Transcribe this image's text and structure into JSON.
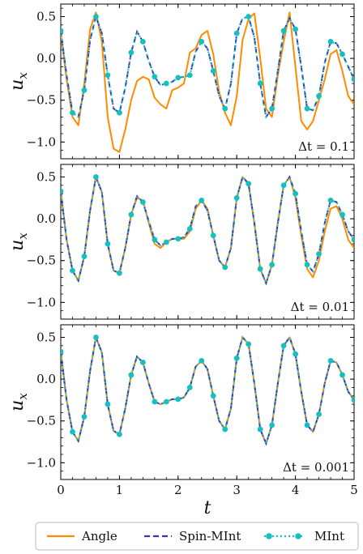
{
  "colors": {
    "angle": "#ff8c00",
    "spin_mint": "#4b2db0",
    "mint": "#17c0c0"
  },
  "legend": {
    "position": "bottom",
    "entries": [
      "Angle",
      "Spin-MInt",
      "MInt"
    ]
  },
  "chart_data": [
    {
      "type": "line",
      "annotation": "Δt = 0.1",
      "xlabel": "",
      "ylabel": "u_x",
      "xlim": [
        0,
        5
      ],
      "ylim": [
        -1.2,
        0.65
      ],
      "yticks": [
        0.5,
        0.0,
        -0.5,
        -1.0
      ],
      "ytick_labels": [
        "0.5",
        "0.0",
        "−0.5",
        "−1.0"
      ],
      "xticks": [
        0,
        1,
        2,
        3,
        4,
        5
      ],
      "xtick_labels": [],
      "series": [
        {
          "name": "Angle",
          "style": "solid",
          "x": [
            0,
            0.1,
            0.2,
            0.3,
            0.4,
            0.5,
            0.6,
            0.7,
            0.8,
            0.9,
            1.0,
            1.1,
            1.2,
            1.3,
            1.4,
            1.5,
            1.6,
            1.7,
            1.8,
            1.9,
            2.0,
            2.1,
            2.2,
            2.3,
            2.4,
            2.5,
            2.6,
            2.7,
            2.8,
            2.9,
            3.0,
            3.1,
            3.2,
            3.3,
            3.4,
            3.5,
            3.6,
            3.7,
            3.8,
            3.9,
            4.0,
            4.1,
            4.2,
            4.3,
            4.4,
            4.5,
            4.6,
            4.7,
            4.8,
            4.9,
            5.0
          ],
          "y": [
            0.3,
            -0.25,
            -0.7,
            -0.8,
            -0.3,
            0.35,
            0.55,
            0.2,
            -0.7,
            -1.08,
            -1.12,
            -0.85,
            -0.5,
            -0.27,
            -0.22,
            -0.25,
            -0.47,
            -0.55,
            -0.6,
            -0.38,
            -0.35,
            -0.3,
            0.07,
            0.12,
            0.28,
            0.33,
            0.05,
            -0.4,
            -0.65,
            -0.8,
            -0.45,
            0.22,
            0.47,
            0.54,
            0.0,
            -0.6,
            -0.7,
            -0.2,
            0.2,
            0.55,
            -0.1,
            -0.75,
            -0.85,
            -0.75,
            -0.5,
            -0.25,
            0.05,
            0.1,
            -0.15,
            -0.45,
            -0.55
          ]
        },
        {
          "name": "Spin-MInt",
          "style": "dashed",
          "x": [
            0,
            0.1,
            0.2,
            0.3,
            0.4,
            0.5,
            0.6,
            0.7,
            0.8,
            0.9,
            1.0,
            1.1,
            1.2,
            1.3,
            1.4,
            1.5,
            1.6,
            1.7,
            1.8,
            1.9,
            2.0,
            2.1,
            2.2,
            2.3,
            2.4,
            2.5,
            2.6,
            2.7,
            2.8,
            2.9,
            3.0,
            3.1,
            3.2,
            3.3,
            3.4,
            3.5,
            3.6,
            3.7,
            3.8,
            3.9,
            4.0,
            4.1,
            4.2,
            4.3,
            4.4,
            4.5,
            4.6,
            4.7,
            4.8,
            4.9,
            5.0
          ],
          "y": [
            0.33,
            -0.2,
            -0.65,
            -0.7,
            -0.38,
            0.22,
            0.5,
            0.3,
            -0.2,
            -0.6,
            -0.65,
            -0.35,
            0.07,
            0.32,
            0.2,
            -0.03,
            -0.22,
            -0.32,
            -0.3,
            -0.28,
            -0.23,
            -0.22,
            -0.2,
            0.08,
            0.2,
            0.12,
            -0.15,
            -0.45,
            -0.6,
            -0.3,
            0.3,
            0.48,
            0.5,
            0.25,
            -0.3,
            -0.7,
            -0.6,
            -0.15,
            0.33,
            0.48,
            0.35,
            -0.1,
            -0.6,
            -0.62,
            -0.45,
            -0.05,
            0.2,
            0.18,
            0.05,
            -0.1,
            -0.25
          ]
        },
        {
          "name": "MInt",
          "style": "dotted-markers",
          "x": [
            0,
            0.1,
            0.2,
            0.3,
            0.4,
            0.5,
            0.6,
            0.7,
            0.8,
            0.9,
            1.0,
            1.1,
            1.2,
            1.3,
            1.4,
            1.5,
            1.6,
            1.7,
            1.8,
            1.9,
            2.0,
            2.1,
            2.2,
            2.3,
            2.4,
            2.5,
            2.6,
            2.7,
            2.8,
            2.9,
            3.0,
            3.1,
            3.2,
            3.3,
            3.4,
            3.5,
            3.6,
            3.7,
            3.8,
            3.9,
            4.0,
            4.1,
            4.2,
            4.3,
            4.4,
            4.5,
            4.6,
            4.7,
            4.8,
            4.9,
            5.0
          ],
          "y": [
            0.33,
            -0.2,
            -0.65,
            -0.7,
            -0.38,
            0.22,
            0.5,
            0.3,
            -0.2,
            -0.6,
            -0.65,
            -0.35,
            0.07,
            0.32,
            0.2,
            -0.03,
            -0.22,
            -0.32,
            -0.3,
            -0.28,
            -0.23,
            -0.22,
            -0.2,
            0.08,
            0.2,
            0.12,
            -0.15,
            -0.45,
            -0.6,
            -0.3,
            0.3,
            0.48,
            0.5,
            0.25,
            -0.3,
            -0.7,
            -0.6,
            -0.15,
            0.33,
            0.48,
            0.35,
            -0.1,
            -0.6,
            -0.62,
            -0.45,
            -0.05,
            0.2,
            0.18,
            0.05,
            -0.1,
            -0.25
          ]
        }
      ]
    },
    {
      "type": "line",
      "annotation": "Δt = 0.01",
      "xlabel": "",
      "ylabel": "u_x",
      "xlim": [
        0,
        5
      ],
      "ylim": [
        -1.2,
        0.65
      ],
      "yticks": [
        0.5,
        0.0,
        -0.5,
        -1.0
      ],
      "ytick_labels": [
        "0.5",
        "0.0",
        "−0.5",
        "−1.0"
      ],
      "xticks": [
        0,
        1,
        2,
        3,
        4,
        5
      ],
      "xtick_labels": [],
      "series": [
        {
          "name": "Angle",
          "style": "solid",
          "x": [
            0,
            0.1,
            0.2,
            0.3,
            0.4,
            0.5,
            0.6,
            0.7,
            0.8,
            0.9,
            1.0,
            1.1,
            1.2,
            1.3,
            1.4,
            1.5,
            1.6,
            1.7,
            1.8,
            1.9,
            2.0,
            2.1,
            2.2,
            2.3,
            2.4,
            2.5,
            2.6,
            2.7,
            2.8,
            2.9,
            3.0,
            3.1,
            3.2,
            3.3,
            3.4,
            3.5,
            3.6,
            3.7,
            3.8,
            3.9,
            4.0,
            4.1,
            4.2,
            4.3,
            4.4,
            4.5,
            4.6,
            4.7,
            4.8,
            4.9,
            5.0
          ],
          "y": [
            0.33,
            -0.25,
            -0.62,
            -0.74,
            -0.45,
            0.1,
            0.5,
            0.32,
            -0.3,
            -0.62,
            -0.65,
            -0.35,
            0.05,
            0.25,
            0.22,
            -0.05,
            -0.3,
            -0.35,
            -0.28,
            -0.24,
            -0.24,
            -0.24,
            -0.15,
            0.12,
            0.22,
            0.12,
            -0.2,
            -0.5,
            -0.58,
            -0.35,
            0.25,
            0.5,
            0.42,
            -0.05,
            -0.6,
            -0.77,
            -0.55,
            -0.05,
            0.4,
            0.5,
            0.25,
            -0.2,
            -0.6,
            -0.7,
            -0.5,
            -0.15,
            0.12,
            0.15,
            0.0,
            -0.25,
            -0.35
          ]
        },
        {
          "name": "Spin-MInt",
          "style": "dashed",
          "x": [
            0,
            0.1,
            0.2,
            0.3,
            0.4,
            0.5,
            0.6,
            0.7,
            0.8,
            0.9,
            1.0,
            1.1,
            1.2,
            1.3,
            1.4,
            1.5,
            1.6,
            1.7,
            1.8,
            1.9,
            2.0,
            2.1,
            2.2,
            2.3,
            2.4,
            2.5,
            2.6,
            2.7,
            2.8,
            2.9,
            3.0,
            3.1,
            3.2,
            3.3,
            3.4,
            3.5,
            3.6,
            3.7,
            3.8,
            3.9,
            4.0,
            4.1,
            4.2,
            4.3,
            4.4,
            4.5,
            4.6,
            4.7,
            4.8,
            4.9,
            5.0
          ],
          "y": [
            0.33,
            -0.25,
            -0.62,
            -0.74,
            -0.45,
            0.1,
            0.5,
            0.32,
            -0.3,
            -0.62,
            -0.65,
            -0.35,
            0.05,
            0.27,
            0.2,
            -0.03,
            -0.25,
            -0.32,
            -0.28,
            -0.24,
            -0.24,
            -0.22,
            -0.12,
            0.15,
            0.22,
            0.1,
            -0.2,
            -0.5,
            -0.58,
            -0.35,
            0.25,
            0.5,
            0.42,
            -0.05,
            -0.6,
            -0.77,
            -0.55,
            -0.05,
            0.4,
            0.5,
            0.3,
            -0.15,
            -0.55,
            -0.63,
            -0.42,
            -0.05,
            0.22,
            0.2,
            0.05,
            -0.15,
            -0.25
          ]
        },
        {
          "name": "MInt",
          "style": "dotted-markers",
          "x": [
            0,
            0.1,
            0.2,
            0.3,
            0.4,
            0.5,
            0.6,
            0.7,
            0.8,
            0.9,
            1.0,
            1.1,
            1.2,
            1.3,
            1.4,
            1.5,
            1.6,
            1.7,
            1.8,
            1.9,
            2.0,
            2.1,
            2.2,
            2.3,
            2.4,
            2.5,
            2.6,
            2.7,
            2.8,
            2.9,
            3.0,
            3.1,
            3.2,
            3.3,
            3.4,
            3.5,
            3.6,
            3.7,
            3.8,
            3.9,
            4.0,
            4.1,
            4.2,
            4.3,
            4.4,
            4.5,
            4.6,
            4.7,
            4.8,
            4.9,
            5.0
          ],
          "y": [
            0.33,
            -0.25,
            -0.62,
            -0.74,
            -0.45,
            0.1,
            0.5,
            0.32,
            -0.3,
            -0.62,
            -0.65,
            -0.35,
            0.05,
            0.27,
            0.2,
            -0.03,
            -0.25,
            -0.32,
            -0.28,
            -0.24,
            -0.24,
            -0.22,
            -0.12,
            0.15,
            0.22,
            0.1,
            -0.2,
            -0.5,
            -0.58,
            -0.35,
            0.25,
            0.5,
            0.42,
            -0.05,
            -0.6,
            -0.77,
            -0.55,
            -0.05,
            0.4,
            0.5,
            0.3,
            -0.15,
            -0.55,
            -0.63,
            -0.42,
            -0.05,
            0.22,
            0.2,
            0.05,
            -0.15,
            -0.25
          ]
        }
      ]
    },
    {
      "type": "line",
      "annotation": "Δt = 0.001",
      "xlabel": "t",
      "ylabel": "u_x",
      "xlim": [
        0,
        5
      ],
      "ylim": [
        -1.2,
        0.65
      ],
      "yticks": [
        0.5,
        0.0,
        -0.5,
        -1.0
      ],
      "ytick_labels": [
        "0.5",
        "0.0",
        "−0.5",
        "−1.0"
      ],
      "xticks": [
        0,
        1,
        2,
        3,
        4,
        5
      ],
      "xtick_labels": [
        "0",
        "1",
        "2",
        "3",
        "4",
        "5"
      ],
      "series": [
        {
          "name": "Angle",
          "style": "solid",
          "x": [
            0,
            0.1,
            0.2,
            0.3,
            0.4,
            0.5,
            0.6,
            0.7,
            0.8,
            0.9,
            1.0,
            1.1,
            1.2,
            1.3,
            1.4,
            1.5,
            1.6,
            1.7,
            1.8,
            1.9,
            2.0,
            2.1,
            2.2,
            2.3,
            2.4,
            2.5,
            2.6,
            2.7,
            2.8,
            2.9,
            3.0,
            3.1,
            3.2,
            3.3,
            3.4,
            3.5,
            3.6,
            3.7,
            3.8,
            3.9,
            4.0,
            4.1,
            4.2,
            4.3,
            4.4,
            4.5,
            4.6,
            4.7,
            4.8,
            4.9,
            5.0
          ],
          "y": [
            0.33,
            -0.25,
            -0.63,
            -0.74,
            -0.45,
            0.1,
            0.5,
            0.32,
            -0.3,
            -0.62,
            -0.66,
            -0.35,
            0.05,
            0.27,
            0.2,
            -0.05,
            -0.27,
            -0.3,
            -0.27,
            -0.24,
            -0.24,
            -0.22,
            -0.1,
            0.15,
            0.22,
            0.12,
            -0.2,
            -0.5,
            -0.6,
            -0.35,
            0.25,
            0.5,
            0.42,
            -0.05,
            -0.6,
            -0.77,
            -0.55,
            -0.05,
            0.4,
            0.5,
            0.3,
            -0.15,
            -0.55,
            -0.63,
            -0.42,
            -0.05,
            0.22,
            0.2,
            0.05,
            -0.15,
            -0.25
          ]
        },
        {
          "name": "Spin-MInt",
          "style": "dashed",
          "x": [
            0,
            0.1,
            0.2,
            0.3,
            0.4,
            0.5,
            0.6,
            0.7,
            0.8,
            0.9,
            1.0,
            1.1,
            1.2,
            1.3,
            1.4,
            1.5,
            1.6,
            1.7,
            1.8,
            1.9,
            2.0,
            2.1,
            2.2,
            2.3,
            2.4,
            2.5,
            2.6,
            2.7,
            2.8,
            2.9,
            3.0,
            3.1,
            3.2,
            3.3,
            3.4,
            3.5,
            3.6,
            3.7,
            3.8,
            3.9,
            4.0,
            4.1,
            4.2,
            4.3,
            4.4,
            4.5,
            4.6,
            4.7,
            4.8,
            4.9,
            5.0
          ],
          "y": [
            0.33,
            -0.25,
            -0.63,
            -0.74,
            -0.45,
            0.1,
            0.5,
            0.32,
            -0.3,
            -0.62,
            -0.66,
            -0.35,
            0.05,
            0.27,
            0.2,
            -0.05,
            -0.27,
            -0.3,
            -0.27,
            -0.24,
            -0.24,
            -0.22,
            -0.1,
            0.15,
            0.22,
            0.12,
            -0.2,
            -0.5,
            -0.6,
            -0.35,
            0.25,
            0.5,
            0.42,
            -0.05,
            -0.6,
            -0.77,
            -0.55,
            -0.05,
            0.4,
            0.5,
            0.3,
            -0.15,
            -0.55,
            -0.63,
            -0.42,
            -0.05,
            0.22,
            0.2,
            0.05,
            -0.15,
            -0.25
          ]
        },
        {
          "name": "MInt",
          "style": "dotted-markers",
          "x": [
            0,
            0.1,
            0.2,
            0.3,
            0.4,
            0.5,
            0.6,
            0.7,
            0.8,
            0.9,
            1.0,
            1.1,
            1.2,
            1.3,
            1.4,
            1.5,
            1.6,
            1.7,
            1.8,
            1.9,
            2.0,
            2.1,
            2.2,
            2.3,
            2.4,
            2.5,
            2.6,
            2.7,
            2.8,
            2.9,
            3.0,
            3.1,
            3.2,
            3.3,
            3.4,
            3.5,
            3.6,
            3.7,
            3.8,
            3.9,
            4.0,
            4.1,
            4.2,
            4.3,
            4.4,
            4.5,
            4.6,
            4.7,
            4.8,
            4.9,
            5.0
          ],
          "y": [
            0.33,
            -0.25,
            -0.63,
            -0.74,
            -0.45,
            0.1,
            0.5,
            0.32,
            -0.3,
            -0.62,
            -0.66,
            -0.35,
            0.05,
            0.27,
            0.2,
            -0.05,
            -0.27,
            -0.3,
            -0.27,
            -0.24,
            -0.24,
            -0.22,
            -0.1,
            0.15,
            0.22,
            0.12,
            -0.2,
            -0.5,
            -0.6,
            -0.35,
            0.25,
            0.5,
            0.42,
            -0.05,
            -0.6,
            -0.77,
            -0.55,
            -0.05,
            0.4,
            0.5,
            0.3,
            -0.15,
            -0.55,
            -0.63,
            -0.42,
            -0.05,
            0.22,
            0.2,
            0.05,
            -0.15,
            -0.25
          ]
        }
      ]
    }
  ]
}
